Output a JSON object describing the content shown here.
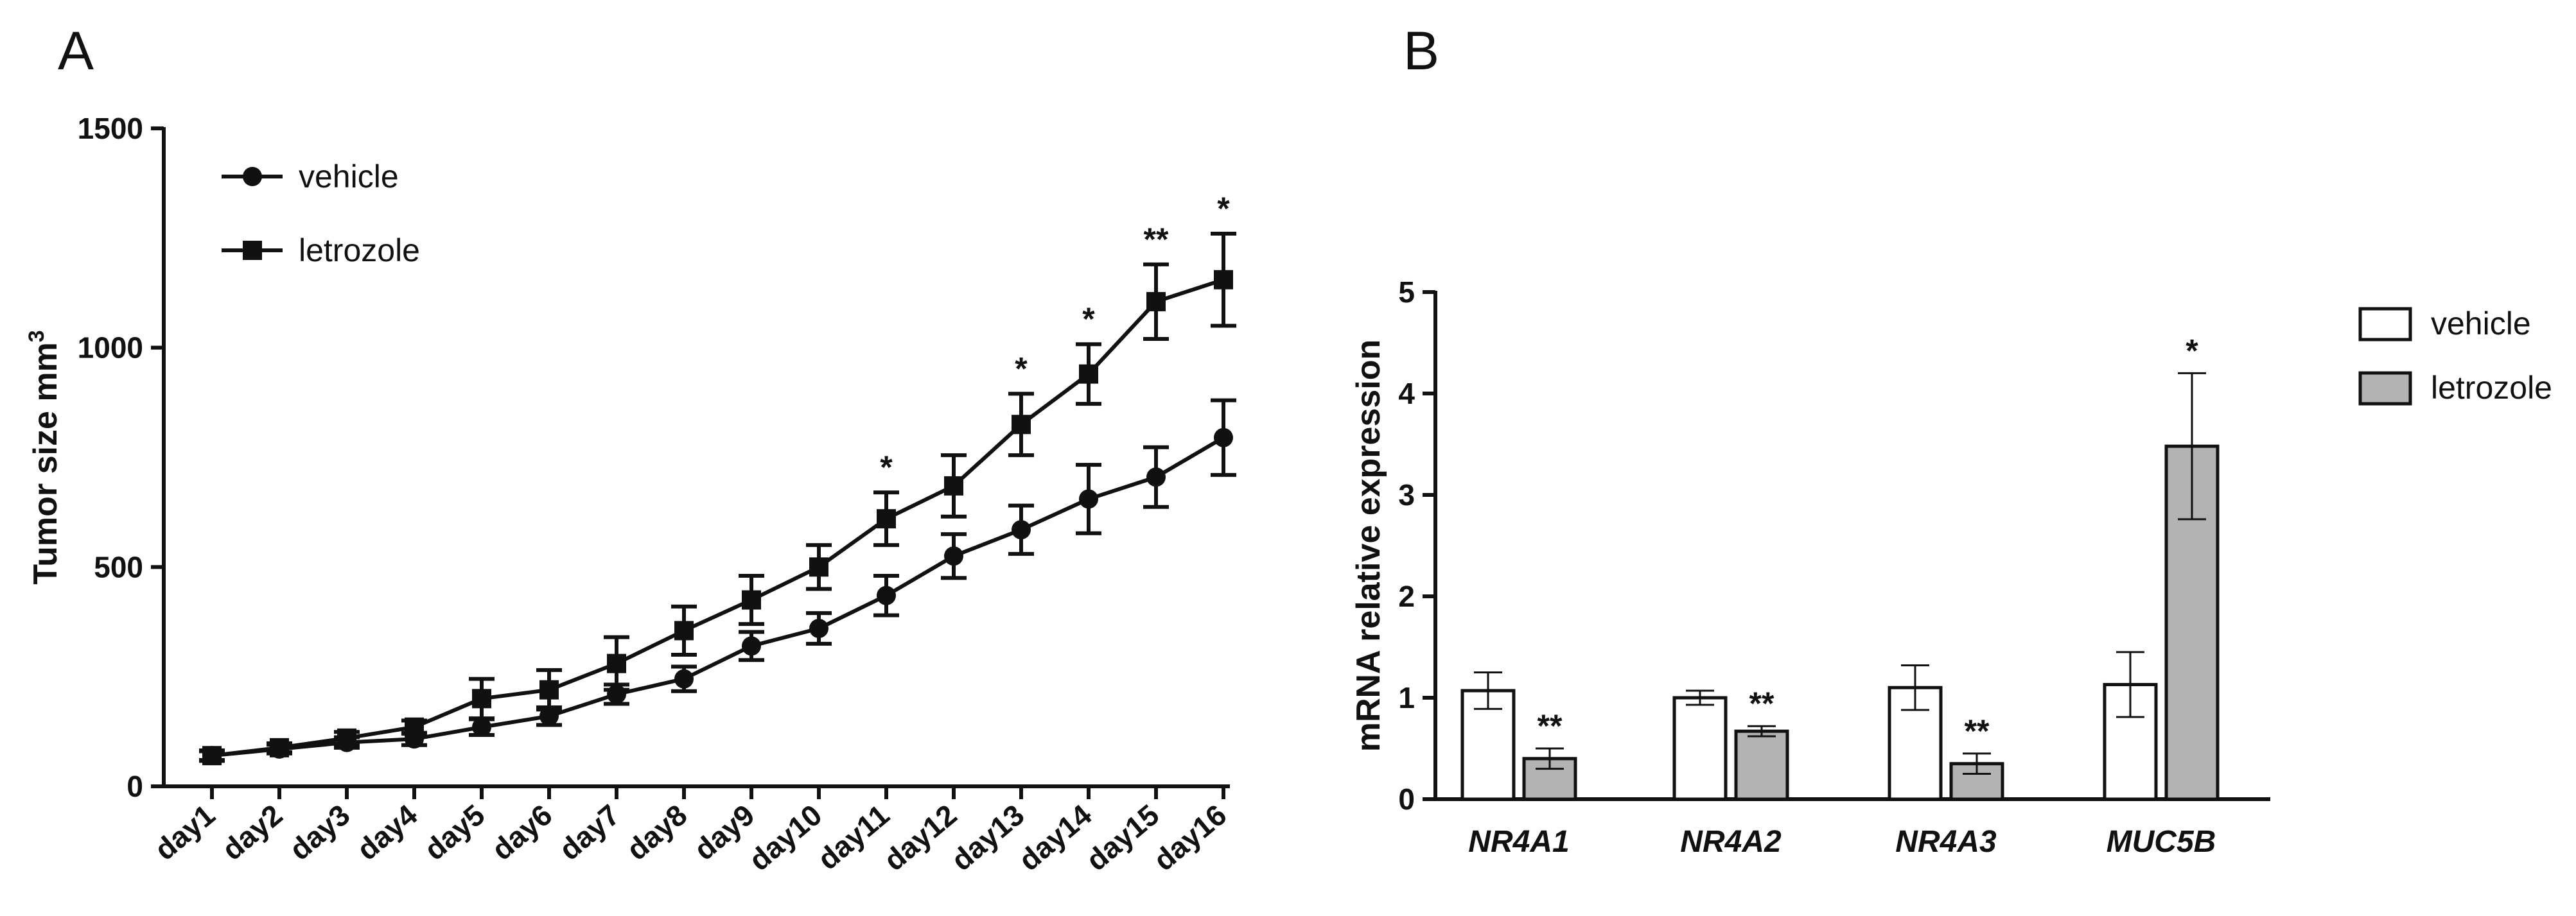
{
  "panels": {
    "a": "A",
    "b": "B"
  },
  "chart_data": [
    {
      "type": "line",
      "panel": "A",
      "title": "",
      "xlabel": "",
      "ylabel": "Tumor size mm",
      "ylabel_sup": "3",
      "ylim": [
        0,
        1500
      ],
      "yticks": [
        "0",
        "500",
        "1000",
        "1500"
      ],
      "categories": [
        "day1",
        "day2",
        "day3",
        "day4",
        "day5",
        "day6",
        "day7",
        "day8",
        "day9",
        "day10",
        "day11",
        "day12",
        "day13",
        "day14",
        "day15",
        "day16"
      ],
      "series": [
        {
          "name": "vehicle",
          "marker": "circle",
          "values": [
            70,
            85,
            100,
            108,
            135,
            160,
            210,
            245,
            320,
            360,
            435,
            525,
            585,
            655,
            705,
            795
          ],
          "errors": [
            12,
            10,
            12,
            14,
            18,
            20,
            22,
            28,
            32,
            35,
            45,
            50,
            55,
            78,
            68,
            85
          ]
        },
        {
          "name": "letrozole",
          "marker": "square",
          "values": [
            70,
            88,
            110,
            135,
            200,
            220,
            280,
            355,
            425,
            500,
            610,
            685,
            825,
            940,
            1105,
            1155
          ],
          "errors": [
            10,
            10,
            14,
            15,
            45,
            45,
            60,
            55,
            55,
            50,
            60,
            70,
            70,
            68,
            85,
            105
          ]
        }
      ],
      "annotations": [
        {
          "category": "day11",
          "text": "*"
        },
        {
          "category": "day13",
          "text": "*"
        },
        {
          "category": "day14",
          "text": "*"
        },
        {
          "category": "day15",
          "text": "**"
        },
        {
          "category": "day16",
          "text": "*"
        }
      ],
      "legend": "top-left"
    },
    {
      "type": "bar",
      "panel": "B",
      "title": "",
      "xlabel": "",
      "ylabel": "mRNA relative expression",
      "ylim": [
        0,
        5
      ],
      "yticks": [
        "0",
        "1",
        "2",
        "3",
        "4",
        "5"
      ],
      "categories": [
        "NR4A1",
        "NR4A2",
        "NR4A3",
        "MUC5B"
      ],
      "series": [
        {
          "name": "vehicle",
          "color": "#ffffff",
          "values": [
            1.07,
            1.0,
            1.1,
            1.13
          ],
          "errors": [
            0.18,
            0.07,
            0.22,
            0.32
          ]
        },
        {
          "name": "letrozole",
          "color": "#b3b3b3",
          "values": [
            0.4,
            0.67,
            0.35,
            3.48
          ],
          "errors": [
            0.1,
            0.05,
            0.1,
            0.72
          ]
        }
      ],
      "annotations": [
        {
          "category": "NR4A1",
          "series": "letrozole",
          "text": "**"
        },
        {
          "category": "NR4A2",
          "series": "letrozole",
          "text": "**"
        },
        {
          "category": "NR4A3",
          "series": "letrozole",
          "text": "**"
        },
        {
          "category": "MUC5B",
          "series": "letrozole",
          "text": "*"
        }
      ],
      "legend": "right"
    }
  ]
}
